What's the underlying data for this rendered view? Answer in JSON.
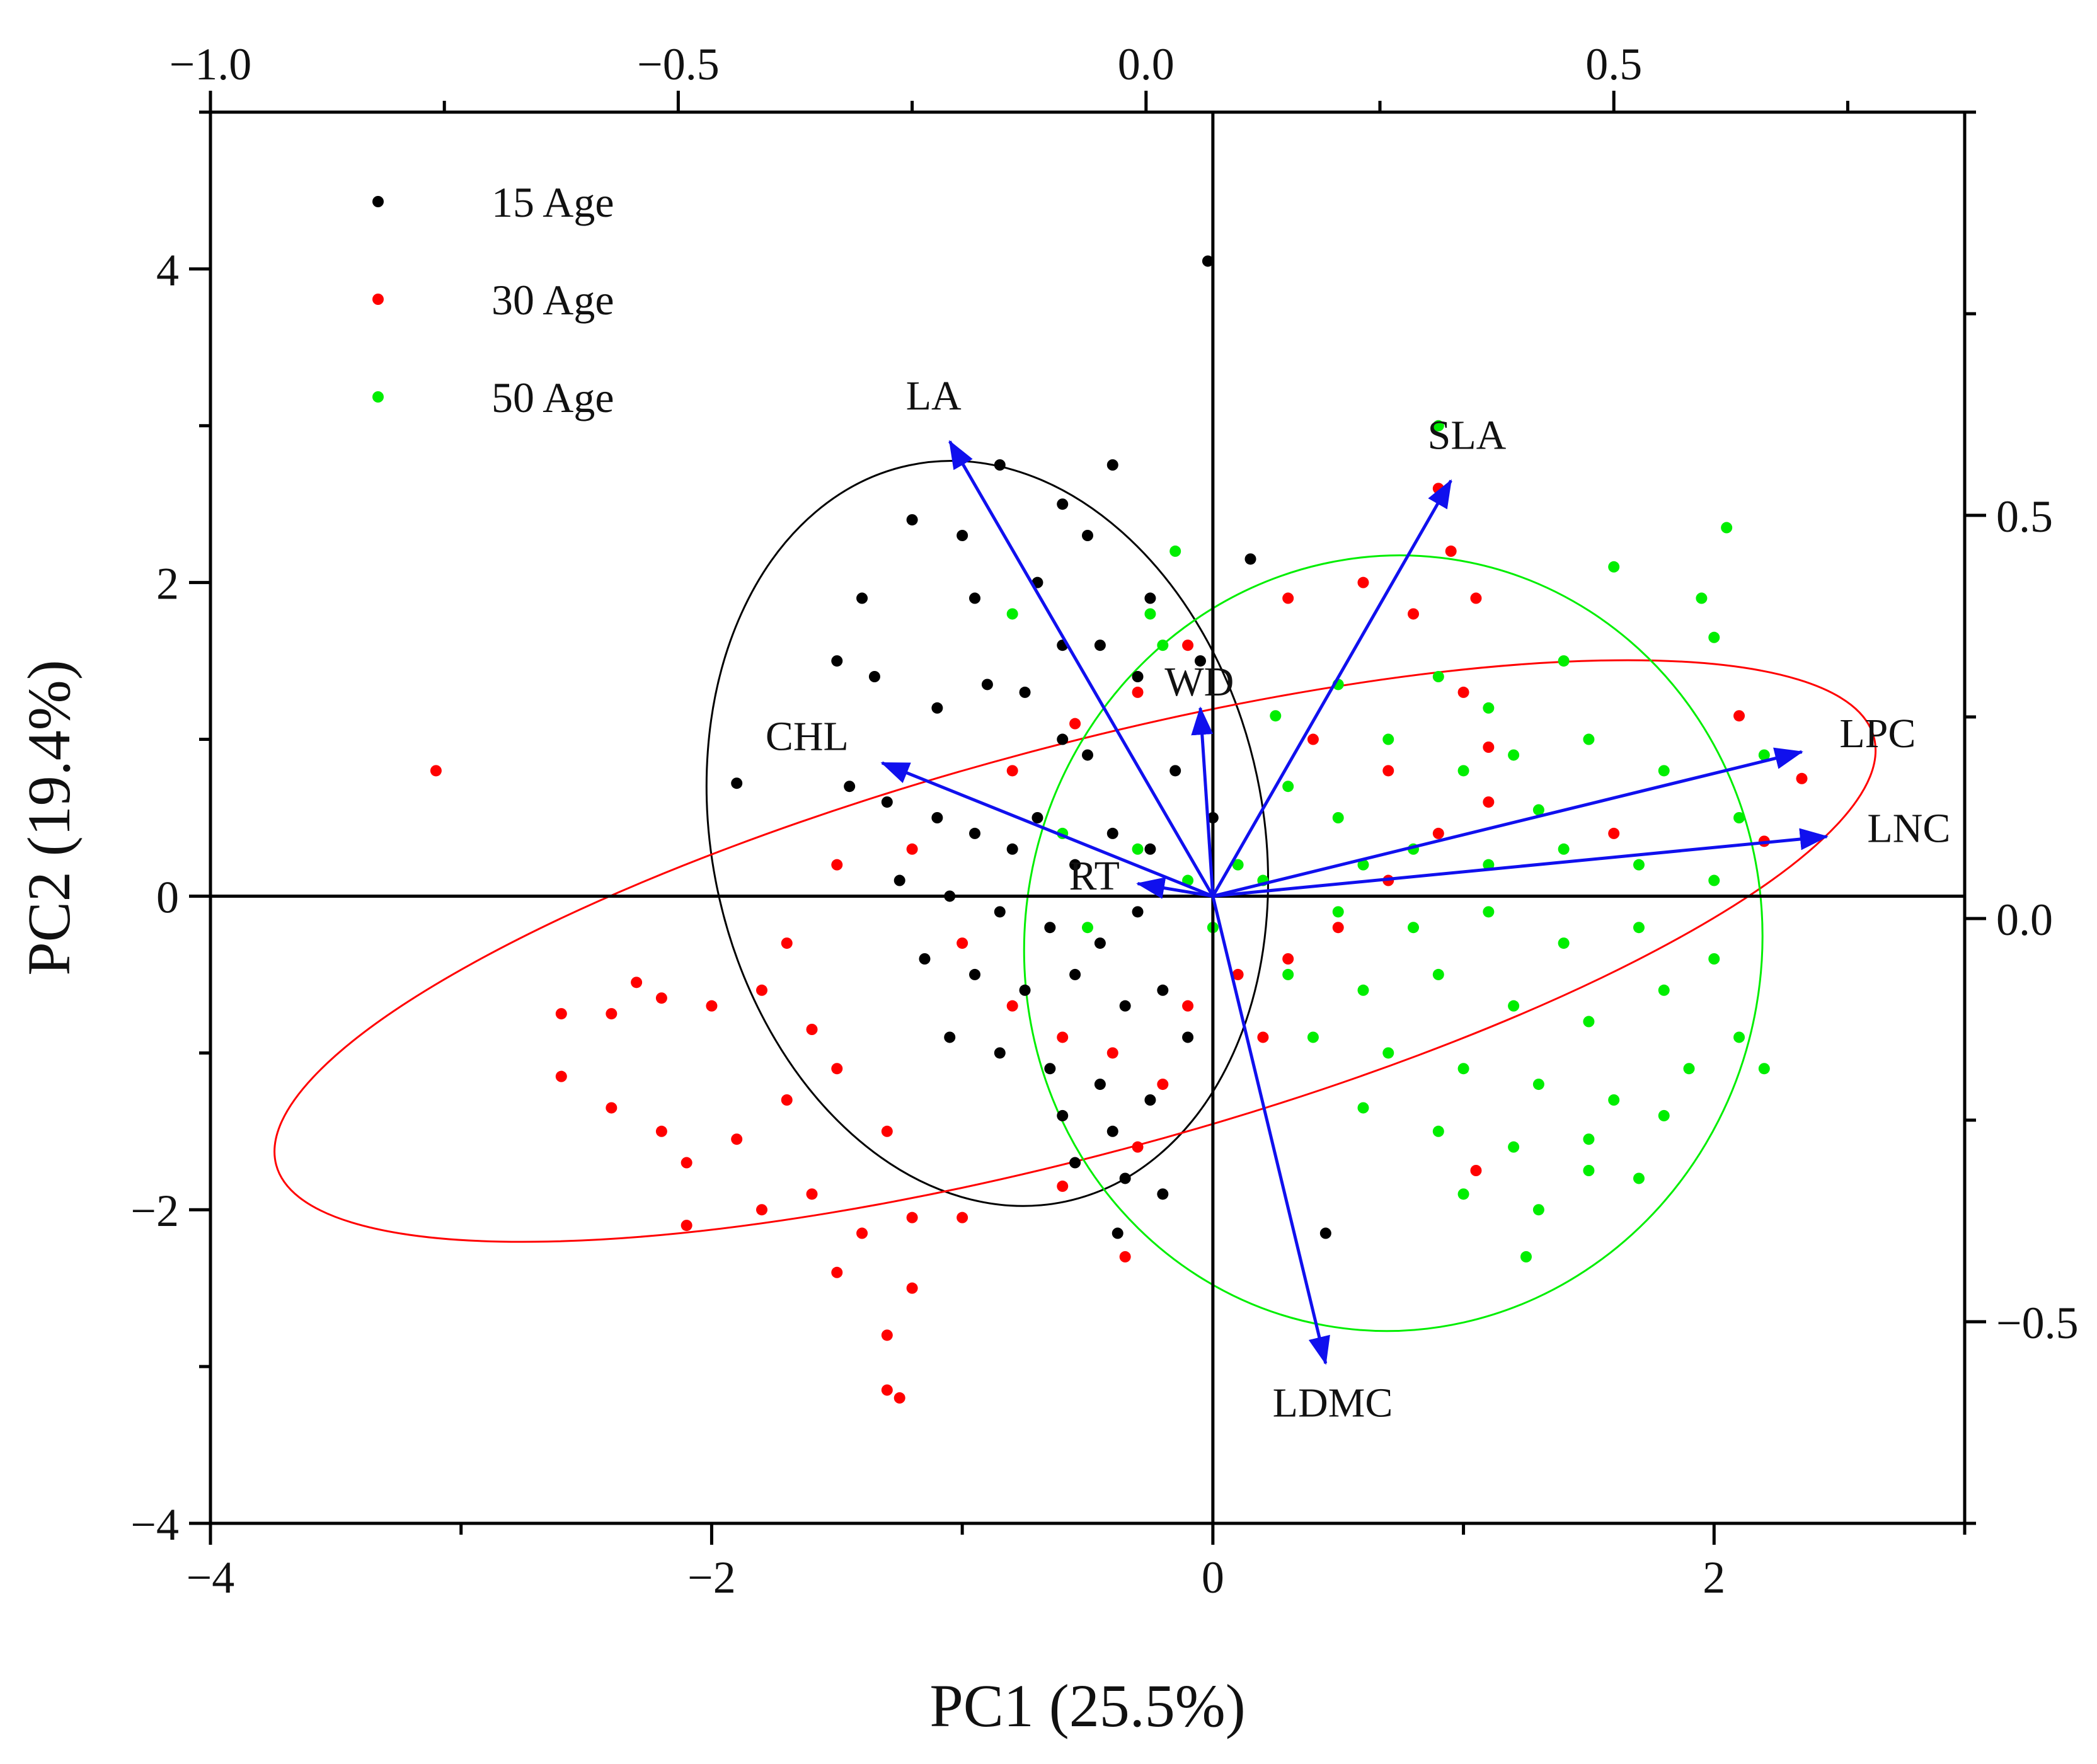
{
  "chart_data": {
    "type": "scatter",
    "subtype": "pca-biplot",
    "xlabel": "PC1 (25.5%)",
    "ylabel": "PC2 (19.4%)",
    "xlim": [
      -4,
      3
    ],
    "ylim": [
      -4,
      5
    ],
    "x_ticks": [
      {
        "value": -4,
        "label": "−4"
      },
      {
        "value": -2,
        "label": "−2"
      },
      {
        "value": 0,
        "label": "0"
      },
      {
        "value": 2,
        "label": "2"
      }
    ],
    "y_ticks": [
      {
        "value": -4,
        "label": "−4"
      },
      {
        "value": -2,
        "label": "−2"
      },
      {
        "value": 0,
        "label": "0"
      },
      {
        "value": 2,
        "label": "2"
      },
      {
        "value": 4,
        "label": "4"
      }
    ],
    "top_axis": {
      "range": [
        -1.0,
        0.875
      ],
      "ticks": [
        {
          "value": -1.0,
          "label": "−1.0"
        },
        {
          "value": -0.5,
          "label": "−0.5"
        },
        {
          "value": 0.0,
          "label": "0.0"
        },
        {
          "value": 0.5,
          "label": "0.5"
        }
      ]
    },
    "right_axis": {
      "range": [
        -0.75,
        1.0
      ],
      "ticks": [
        {
          "value": -0.5,
          "label": "−0.5"
        },
        {
          "value": 0.0,
          "label": "0.0"
        },
        {
          "value": 0.5,
          "label": "0.5"
        }
      ]
    },
    "legend_position": "top-left",
    "series": [
      {
        "name": "15 Age",
        "color": "#000000",
        "ellipse": {
          "cx": -0.9,
          "cy": 0.4,
          "rx": 1.1,
          "ry": 2.4,
          "angle_deg": 12
        },
        "points": [
          [
            -1.0,
            2.3
          ],
          [
            -0.85,
            2.75
          ],
          [
            -0.6,
            2.5
          ],
          [
            -0.4,
            2.75
          ],
          [
            -0.5,
            2.3
          ],
          [
            -1.2,
            2.4
          ],
          [
            -1.4,
            1.9
          ],
          [
            -1.5,
            1.5
          ],
          [
            -1.35,
            1.4
          ],
          [
            -1.1,
            1.2
          ],
          [
            -0.9,
            1.35
          ],
          [
            -0.75,
            1.3
          ],
          [
            -0.6,
            1.0
          ],
          [
            -0.45,
            1.6
          ],
          [
            -0.3,
            1.4
          ],
          [
            -1.45,
            0.7
          ],
          [
            -1.3,
            0.6
          ],
          [
            -1.1,
            0.5
          ],
          [
            -0.95,
            0.4
          ],
          [
            -0.8,
            0.3
          ],
          [
            -0.7,
            0.5
          ],
          [
            -0.55,
            0.2
          ],
          [
            -0.4,
            0.4
          ],
          [
            -0.25,
            0.3
          ],
          [
            -1.25,
            0.1
          ],
          [
            -1.05,
            0.0
          ],
          [
            -0.85,
            -0.1
          ],
          [
            -0.65,
            -0.2
          ],
          [
            -0.45,
            -0.3
          ],
          [
            -0.3,
            -0.1
          ],
          [
            -1.15,
            -0.4
          ],
          [
            -0.95,
            -0.5
          ],
          [
            -0.75,
            -0.6
          ],
          [
            -0.55,
            -0.5
          ],
          [
            -0.35,
            -0.7
          ],
          [
            -0.2,
            -0.6
          ],
          [
            -1.05,
            -0.9
          ],
          [
            -0.85,
            -1.0
          ],
          [
            -0.65,
            -1.1
          ],
          [
            -0.45,
            -1.2
          ],
          [
            -0.6,
            -1.4
          ],
          [
            -0.4,
            -1.5
          ],
          [
            -0.25,
            -1.3
          ],
          [
            -0.55,
            -1.7
          ],
          [
            -0.35,
            -1.8
          ],
          [
            -0.2,
            -1.9
          ],
          [
            -0.38,
            -2.15
          ],
          [
            -0.1,
            -0.9
          ],
          [
            -0.05,
            1.5
          ],
          [
            0.15,
            2.15
          ],
          [
            0.45,
            -2.15
          ],
          [
            -0.02,
            4.05
          ],
          [
            -1.9,
            0.72
          ],
          [
            -0.15,
            0.8
          ],
          [
            -0.25,
            1.9
          ],
          [
            -0.7,
            2.0
          ],
          [
            -0.95,
            1.9
          ],
          [
            -0.6,
            1.6
          ],
          [
            -0.5,
            0.9
          ],
          [
            0.0,
            0.5
          ]
        ]
      },
      {
        "name": "30 Age",
        "color": "#ff0000",
        "ellipse": {
          "cx": -0.55,
          "cy": -0.35,
          "rx": 3.3,
          "ry": 1.3,
          "angle_deg": 15
        },
        "points": [
          [
            -3.1,
            0.8
          ],
          [
            -2.6,
            -0.75
          ],
          [
            -2.4,
            -0.75
          ],
          [
            -2.3,
            -0.55
          ],
          [
            -2.2,
            -0.65
          ],
          [
            -2.0,
            -0.7
          ],
          [
            -1.8,
            -0.6
          ],
          [
            -1.6,
            -0.85
          ],
          [
            -2.6,
            -1.15
          ],
          [
            -2.4,
            -1.35
          ],
          [
            -2.2,
            -1.5
          ],
          [
            -2.1,
            -1.7
          ],
          [
            -1.9,
            -1.55
          ],
          [
            -1.7,
            -1.3
          ],
          [
            -1.5,
            -1.1
          ],
          [
            -1.3,
            -1.5
          ],
          [
            -2.1,
            -2.1
          ],
          [
            -1.8,
            -2.0
          ],
          [
            -1.6,
            -1.9
          ],
          [
            -1.4,
            -2.15
          ],
          [
            -1.2,
            -2.05
          ],
          [
            -1.0,
            -2.05
          ],
          [
            -1.5,
            -2.4
          ],
          [
            -1.2,
            -2.5
          ],
          [
            -1.3,
            -2.8
          ],
          [
            -1.3,
            -3.15
          ],
          [
            -1.25,
            -3.2
          ],
          [
            -1.7,
            -0.3
          ],
          [
            -1.5,
            0.2
          ],
          [
            -1.2,
            0.3
          ],
          [
            -1.0,
            -0.3
          ],
          [
            -0.8,
            -0.7
          ],
          [
            -0.6,
            -0.9
          ],
          [
            -0.4,
            -1.0
          ],
          [
            -0.3,
            -1.6
          ],
          [
            -0.2,
            -1.2
          ],
          [
            -0.1,
            -0.7
          ],
          [
            0.1,
            -0.5
          ],
          [
            0.3,
            -0.4
          ],
          [
            0.5,
            -0.2
          ],
          [
            0.7,
            0.1
          ],
          [
            0.9,
            0.4
          ],
          [
            1.1,
            0.6
          ],
          [
            1.0,
            1.3
          ],
          [
            0.8,
            1.8
          ],
          [
            0.6,
            2.0
          ],
          [
            0.3,
            1.9
          ],
          [
            -0.1,
            1.6
          ],
          [
            0.9,
            2.6
          ],
          [
            0.95,
            2.2
          ],
          [
            1.05,
            1.9
          ],
          [
            2.1,
            1.15
          ],
          [
            2.35,
            0.75
          ],
          [
            2.2,
            0.35
          ],
          [
            1.1,
            0.95
          ],
          [
            0.4,
            1.0
          ],
          [
            -0.8,
            0.8
          ],
          [
            -0.55,
            1.1
          ],
          [
            -0.35,
            -2.3
          ],
          [
            -0.6,
            -1.85
          ],
          [
            0.2,
            -0.9
          ],
          [
            1.05,
            -1.75
          ],
          [
            -0.3,
            1.3
          ],
          [
            0.7,
            0.8
          ],
          [
            1.6,
            0.4
          ]
        ]
      },
      {
        "name": "50 Age",
        "color": "#00ee00",
        "ellipse": {
          "cx": 0.72,
          "cy": -0.3,
          "rx": 1.55,
          "ry": 2.35,
          "angle_deg": 80
        },
        "points": [
          [
            0.9,
            3.0
          ],
          [
            1.6,
            2.1
          ],
          [
            2.05,
            2.35
          ],
          [
            1.95,
            1.9
          ],
          [
            2.0,
            1.65
          ],
          [
            1.4,
            1.5
          ],
          [
            0.9,
            1.4
          ],
          [
            0.5,
            1.35
          ],
          [
            0.7,
            1.0
          ],
          [
            1.0,
            0.8
          ],
          [
            1.2,
            0.9
          ],
          [
            1.5,
            1.0
          ],
          [
            1.8,
            0.8
          ],
          [
            2.1,
            0.5
          ],
          [
            0.3,
            0.7
          ],
          [
            0.5,
            0.5
          ],
          [
            0.8,
            0.3
          ],
          [
            1.1,
            0.2
          ],
          [
            1.4,
            0.3
          ],
          [
            1.7,
            0.2
          ],
          [
            2.0,
            0.1
          ],
          [
            0.2,
            0.1
          ],
          [
            0.5,
            -0.1
          ],
          [
            0.8,
            -0.2
          ],
          [
            1.1,
            -0.1
          ],
          [
            1.4,
            -0.3
          ],
          [
            1.7,
            -0.2
          ],
          [
            2.0,
            -0.4
          ],
          [
            0.3,
            -0.5
          ],
          [
            0.6,
            -0.6
          ],
          [
            0.9,
            -0.5
          ],
          [
            1.2,
            -0.7
          ],
          [
            1.5,
            -0.8
          ],
          [
            1.8,
            -0.6
          ],
          [
            2.1,
            -0.9
          ],
          [
            0.4,
            -0.9
          ],
          [
            0.7,
            -1.0
          ],
          [
            1.0,
            -1.1
          ],
          [
            1.3,
            -1.2
          ],
          [
            1.6,
            -1.3
          ],
          [
            1.9,
            -1.1
          ],
          [
            2.2,
            -1.1
          ],
          [
            0.6,
            -1.35
          ],
          [
            0.9,
            -1.5
          ],
          [
            1.2,
            -1.6
          ],
          [
            1.5,
            -1.55
          ],
          [
            1.8,
            -1.4
          ],
          [
            1.0,
            -1.9
          ],
          [
            1.3,
            -2.0
          ],
          [
            1.5,
            -1.75
          ],
          [
            1.7,
            -1.8
          ],
          [
            1.25,
            -2.3
          ],
          [
            -0.3,
            0.3
          ],
          [
            -0.1,
            0.1
          ],
          [
            0.0,
            -0.2
          ],
          [
            0.1,
            0.2
          ],
          [
            -0.5,
            -0.2
          ],
          [
            -0.6,
            0.4
          ],
          [
            -0.8,
            1.8
          ],
          [
            -0.25,
            1.8
          ],
          [
            -0.2,
            1.6
          ],
          [
            -0.15,
            2.2
          ],
          [
            0.25,
            1.15
          ],
          [
            2.2,
            0.9
          ],
          [
            1.1,
            1.2
          ],
          [
            0.6,
            0.2
          ],
          [
            1.3,
            0.55
          ]
        ]
      }
    ],
    "vectors": [
      {
        "name": "LA",
        "label": "LA",
        "x": -1.05,
        "y": 2.9
      },
      {
        "name": "SLA",
        "label": "SLA",
        "x": 0.95,
        "y": 2.65
      },
      {
        "name": "WD",
        "label": "WD",
        "x": -0.05,
        "y": 1.2
      },
      {
        "name": "CHL",
        "label": "CHL",
        "x": -1.32,
        "y": 0.85
      },
      {
        "name": "RT",
        "label": "RT",
        "x": -0.3,
        "y": 0.08
      },
      {
        "name": "LPC",
        "label": "LPC",
        "x": 2.35,
        "y": 0.92
      },
      {
        "name": "LNC",
        "label": "LNC",
        "x": 2.45,
        "y": 0.38
      },
      {
        "name": "LDMC",
        "label": "LDMC",
        "x": 0.45,
        "y": -2.98
      }
    ]
  }
}
